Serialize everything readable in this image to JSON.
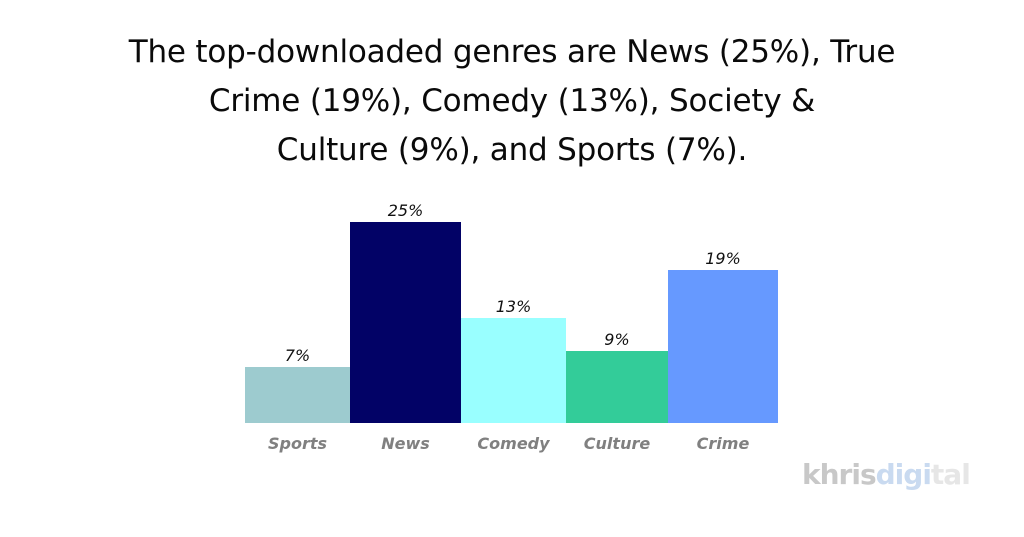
{
  "title": {
    "lines": [
      "The top-downloaded genres are News (25%), True",
      "Crime (19%), Comedy (13%), Society &",
      "Culture (9%), and Sports (7%)."
    ]
  },
  "chart_data": {
    "type": "bar",
    "title": "The top-downloaded genres are News (25%), True Crime (19%), Comedy (13%), Society & Culture (9%), and Sports (7%).",
    "categories": [
      "Sports",
      "News",
      "Comedy",
      "Culture",
      "Crime"
    ],
    "values": [
      7,
      25,
      13,
      9,
      19
    ],
    "value_labels": [
      "7%",
      "25%",
      "13%",
      "9%",
      "19%"
    ],
    "colors": [
      "#9dcbcf",
      "#020266",
      "#99ffff",
      "#33cc99",
      "#6699ff"
    ],
    "xlabel": "",
    "ylabel": "",
    "unit": "%",
    "grid": false,
    "legend": null
  },
  "logo": {
    "part1": "khris",
    "part2": "digi",
    "part3": "tal"
  }
}
